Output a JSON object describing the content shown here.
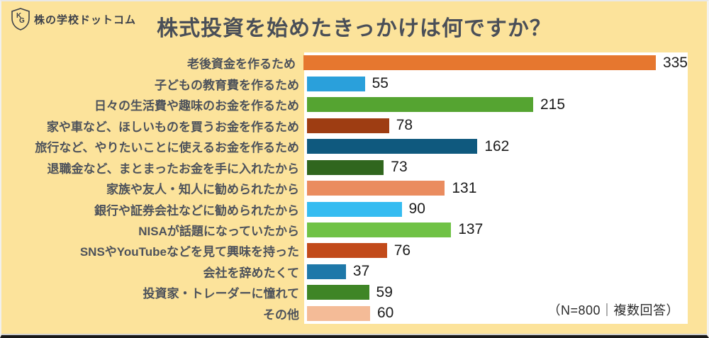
{
  "header": {
    "logo_text": "株の学校ドットコム",
    "logo_monogram": "KG",
    "title": "株式投資を始めたきっかけは何ですか？"
  },
  "chart_data": {
    "type": "bar",
    "orientation": "horizontal",
    "title": "株式投資を始めたきっかけは何ですか？",
    "categories": [
      "老後資金を作るため",
      "子どもの教育費を作るため",
      "日々の生活費や趣味のお金を作るため",
      "家や車など、ほしいものを買うお金を作るため",
      "旅行など、やりたいことに使えるお金を作るため",
      "退職金など、まとまったお金を手に入れたから",
      "家族や友人・知人に勧められたから",
      "銀行や証券会社などに勧められたから",
      "NISAが話題になっていたから",
      "SNSやYouTubeなどを見て興味を持った",
      "会社を辞めたくて",
      "投資家・トレーダーに憧れて",
      "その他"
    ],
    "values": [
      335,
      55,
      215,
      78,
      162,
      73,
      131,
      90,
      137,
      76,
      37,
      59,
      60
    ],
    "bar_colors": [
      "#E6772F",
      "#2AA0DB",
      "#55A431",
      "#9E3D12",
      "#0F597E",
      "#30661E",
      "#EA8C5F",
      "#35BCF1",
      "#70C246",
      "#C24A1A",
      "#1E78A9",
      "#3F8526",
      "#F4BB97"
    ],
    "xlim": [
      0,
      360
    ],
    "grid": false,
    "legend": false,
    "value_labels_shown": true,
    "note": "（N=800｜複数回答）"
  },
  "colors": {
    "background": "#FCE39B",
    "panel": "#FFFFFF",
    "title_text": "#4A4F58",
    "label_text": "#4D525B",
    "value_text": "#1B1B1B",
    "logo_text": "#3D414A"
  }
}
